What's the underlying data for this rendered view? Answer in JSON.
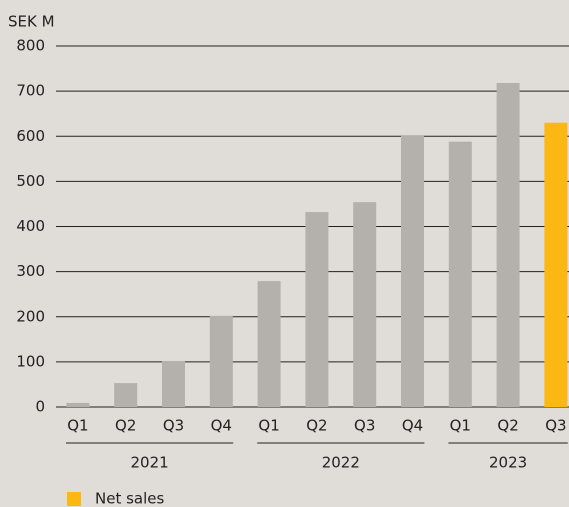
{
  "chart_data": {
    "type": "bar",
    "ylabel": "SEK M",
    "categories": [
      "Q1",
      "Q2",
      "Q3",
      "Q4",
      "Q1",
      "Q2",
      "Q3",
      "Q4",
      "Q1",
      "Q2",
      "Q3"
    ],
    "groups": [
      {
        "label": "2021",
        "size": 4
      },
      {
        "label": "2022",
        "size": 4
      },
      {
        "label": "2023",
        "size": 3
      }
    ],
    "series": [
      {
        "name": "Net sales",
        "color": "#fbb812",
        "values": [
          9,
          53,
          102,
          202,
          279,
          432,
          454,
          601,
          588,
          718,
          630
        ]
      }
    ],
    "colors": [
      "#b4b0ab",
      "#b4b0ab",
      "#b4b0ab",
      "#b4b0ab",
      "#b4b0ab",
      "#b4b0ab",
      "#b4b0ab",
      "#b4b0ab",
      "#b4b0ab",
      "#b4b0ab",
      "#fbb812"
    ],
    "ylim": [
      0,
      800
    ],
    "yticks": [
      0,
      100,
      200,
      300,
      400,
      500,
      600,
      700,
      800
    ],
    "grid": true,
    "legend": "bottom-left"
  }
}
